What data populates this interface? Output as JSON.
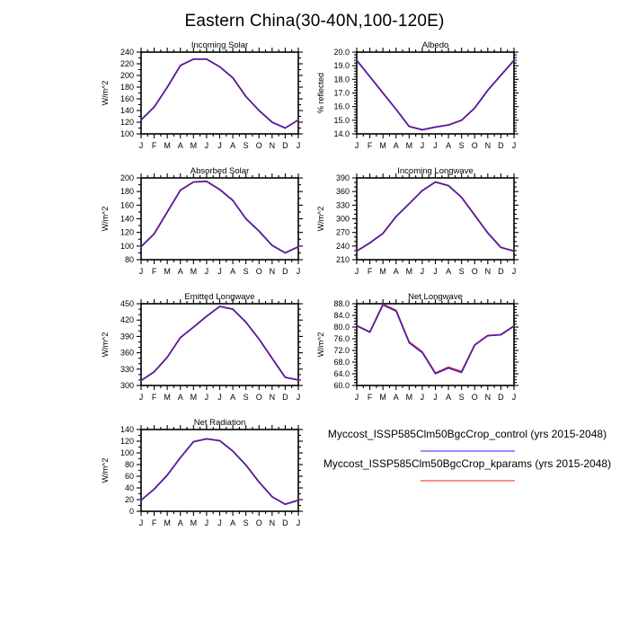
{
  "title": "Eastern China(30-40N,100-120E)",
  "legend": {
    "entries": [
      {
        "label": "Myccost_ISSP585Clm50BgcCrop_control (yrs 2015-2048)",
        "color": "#9090ff"
      },
      {
        "label": "Myccost_ISSP585Clm50BgcCrop_kparams (yrs 2015-2048)",
        "color": "#ff9090"
      }
    ]
  },
  "chart_data": [
    {
      "type": "line",
      "title": "Incoming Solar",
      "ylabel": "W/m^2",
      "categories": [
        "J",
        "F",
        "M",
        "A",
        "M",
        "J",
        "J",
        "A",
        "S",
        "O",
        "N",
        "D",
        "J"
      ],
      "ylim": [
        100,
        240
      ],
      "ytick_step": 20,
      "ytick_decimals": 0,
      "y_minor_divisions": 2,
      "grid": false,
      "series": [
        {
          "name": "control",
          "color": "#2222dd",
          "values": [
            124,
            146,
            180,
            217,
            228,
            228,
            215,
            196,
            164,
            140,
            120,
            110,
            124
          ]
        },
        {
          "name": "kparams",
          "color": "#dd2222",
          "values": [
            124,
            146,
            180,
            217,
            228,
            228,
            215,
            196,
            164,
            140,
            120,
            110,
            124
          ]
        }
      ]
    },
    {
      "type": "line",
      "title": "Albedo",
      "ylabel": "% reflected",
      "categories": [
        "J",
        "F",
        "M",
        "A",
        "M",
        "J",
        "J",
        "A",
        "S",
        "O",
        "N",
        "D",
        "J"
      ],
      "ylim": [
        14.0,
        20.0
      ],
      "ytick_step": 1.0,
      "ytick_decimals": 1,
      "y_minor_divisions": 5,
      "grid": false,
      "series": [
        {
          "name": "control",
          "color": "#2222dd",
          "values": [
            19.4,
            18.2,
            17.0,
            15.8,
            14.55,
            14.3,
            14.5,
            14.65,
            15.0,
            15.9,
            17.2,
            18.3,
            19.4
          ]
        },
        {
          "name": "kparams",
          "color": "#dd2222",
          "values": [
            19.4,
            18.2,
            17.0,
            15.8,
            14.55,
            14.3,
            14.5,
            14.65,
            15.0,
            15.9,
            17.2,
            18.3,
            19.4
          ]
        }
      ]
    },
    {
      "type": "line",
      "title": "Absorbed Solar",
      "ylabel": "W/m^2",
      "categories": [
        "J",
        "F",
        "M",
        "A",
        "M",
        "J",
        "J",
        "A",
        "S",
        "O",
        "N",
        "D",
        "J"
      ],
      "ylim": [
        80,
        200
      ],
      "ytick_step": 20,
      "ytick_decimals": 0,
      "y_minor_divisions": 2,
      "grid": false,
      "series": [
        {
          "name": "control",
          "color": "#2222dd",
          "values": [
            99,
            118,
            150,
            182,
            194,
            195,
            183,
            167,
            140,
            122,
            101,
            90,
            99
          ]
        },
        {
          "name": "kparams",
          "color": "#dd2222",
          "values": [
            99,
            118,
            150,
            182,
            194,
            195,
            183,
            167,
            140,
            122,
            101,
            90,
            99
          ]
        }
      ]
    },
    {
      "type": "line",
      "title": "Incoming Longwave",
      "ylabel": "W/m^2",
      "categories": [
        "J",
        "F",
        "M",
        "A",
        "M",
        "J",
        "J",
        "A",
        "S",
        "O",
        "N",
        "D",
        "J"
      ],
      "ylim": [
        210,
        390
      ],
      "ytick_step": 30,
      "ytick_decimals": 0,
      "y_minor_divisions": 3,
      "grid": false,
      "series": [
        {
          "name": "control",
          "color": "#2222dd",
          "values": [
            229,
            247,
            268,
            305,
            333,
            362,
            381,
            373,
            347,
            308,
            269,
            237,
            229
          ]
        },
        {
          "name": "kparams",
          "color": "#dd2222",
          "values": [
            229,
            247,
            268,
            305,
            333,
            362,
            381,
            373,
            347,
            308,
            269,
            237,
            229
          ]
        }
      ]
    },
    {
      "type": "line",
      "title": "Emitted Longwave",
      "ylabel": "W/m^2",
      "categories": [
        "J",
        "F",
        "M",
        "A",
        "M",
        "J",
        "J",
        "A",
        "S",
        "O",
        "N",
        "D",
        "J"
      ],
      "ylim": [
        300,
        450
      ],
      "ytick_step": 30,
      "ytick_decimals": 0,
      "y_minor_divisions": 3,
      "grid": false,
      "series": [
        {
          "name": "control",
          "color": "#2222dd",
          "values": [
            309,
            325,
            352,
            388,
            407,
            427,
            445,
            440,
            416,
            385,
            350,
            315,
            310
          ]
        },
        {
          "name": "kparams",
          "color": "#dd2222",
          "values": [
            309,
            325,
            352,
            388,
            407,
            427,
            445,
            440,
            416,
            385,
            350,
            315,
            310
          ]
        }
      ]
    },
    {
      "type": "line",
      "title": "Net Longwave",
      "ylabel": "W/m^2",
      "categories": [
        "J",
        "F",
        "M",
        "A",
        "M",
        "J",
        "J",
        "A",
        "S",
        "O",
        "N",
        "D",
        "J"
      ],
      "ylim": [
        60.0,
        88.0
      ],
      "ytick_step": 4.0,
      "ytick_decimals": 1,
      "y_minor_divisions": 4,
      "grid": false,
      "series": [
        {
          "name": "control",
          "color": "#2222dd",
          "values": [
            80.4,
            78.2,
            87.5,
            85.4,
            74.6,
            71.2,
            64.0,
            65.9,
            64.4,
            73.8,
            77.0,
            77.3,
            80.3
          ]
        },
        {
          "name": "kparams",
          "color": "#dd2222",
          "values": [
            80.5,
            78.3,
            87.8,
            85.7,
            74.9,
            71.5,
            64.2,
            66.2,
            64.7,
            73.9,
            77.1,
            77.4,
            80.4
          ]
        }
      ]
    },
    {
      "type": "line",
      "title": "Net Radiation",
      "ylabel": "W/m^2",
      "categories": [
        "J",
        "F",
        "M",
        "A",
        "M",
        "J",
        "J",
        "A",
        "S",
        "O",
        "N",
        "D",
        "J"
      ],
      "ylim": [
        0,
        140
      ],
      "ytick_step": 20,
      "ytick_decimals": 0,
      "y_minor_divisions": 2,
      "grid": false,
      "series": [
        {
          "name": "control",
          "color": "#2222dd",
          "values": [
            19,
            38,
            62,
            92,
            119,
            124,
            121,
            103,
            79,
            50,
            25,
            12,
            19
          ]
        },
        {
          "name": "kparams",
          "color": "#dd2222",
          "values": [
            19,
            38,
            62,
            92,
            119,
            124,
            121,
            103,
            79,
            50,
            25,
            12,
            19
          ]
        }
      ]
    }
  ]
}
